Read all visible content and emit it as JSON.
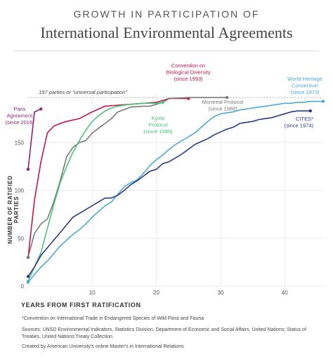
{
  "header": {
    "title_top": "GROWTH IN PARTICIPATION OF",
    "title_main": "International Environmental Agreements"
  },
  "chart_data": {
    "type": "line",
    "xlabel": "YEARS FROM FIRST RATIFICATION",
    "ylabel": "NUMBER OF RATIFIED PARTIES",
    "xlim": [
      0,
      46
    ],
    "ylim": [
      0,
      200
    ],
    "x_ticks": [
      "10",
      "20",
      "30",
      "40"
    ],
    "y_ticks": [
      "0",
      "50",
      "100",
      "150"
    ],
    "reference_line": {
      "value": 197,
      "label": "197 parties or \"universal participation\""
    },
    "series": [
      {
        "name": "Paris Agreement (since 2016)",
        "label_lines": [
          "Paris",
          "Agreement",
          "(since 2016)"
        ],
        "color": "#8a2480",
        "x": [
          0,
          1,
          2
        ],
        "y": [
          122,
          182,
          185
        ]
      },
      {
        "name": "Convention on Biological Diversity (since 1993)",
        "label_lines": [
          "Convention on",
          "Biological Diversity",
          "(since 1993)"
        ],
        "color": "#c4184a",
        "x": [
          0,
          1,
          2,
          3,
          4,
          5,
          6,
          8,
          10,
          12,
          14,
          16,
          18,
          20,
          22,
          25
        ],
        "y": [
          30,
          90,
          130,
          160,
          167,
          170,
          172,
          175,
          182,
          188,
          189,
          190,
          191,
          192,
          196,
          196
        ]
      },
      {
        "name": "Montreal Protocol (since 1988)",
        "label_lines": [
          "Montreal Protocol",
          "(since 1988)"
        ],
        "color": "#7a7a7a",
        "x": [
          0,
          1,
          2,
          3,
          4,
          5,
          6,
          7,
          8,
          9,
          10,
          11,
          12,
          13,
          14,
          16,
          18,
          19,
          20,
          21,
          22,
          25,
          31
        ],
        "y": [
          30,
          55,
          65,
          70,
          88,
          110,
          135,
          145,
          150,
          152,
          160,
          165,
          170,
          175,
          182,
          187,
          188,
          188,
          190,
          192,
          196,
          197,
          197
        ]
      },
      {
        "name": "Kyoto Protocol (since 1998)",
        "label_lines": [
          "Kyoto",
          "Protocol",
          "(since 1998)"
        ],
        "color": "#4fc17c",
        "x": [
          0,
          1,
          2,
          3,
          4,
          5,
          6,
          7,
          8,
          9,
          10,
          11,
          12,
          13,
          14,
          15,
          16,
          18,
          20,
          21
        ],
        "y": [
          5,
          20,
          35,
          60,
          85,
          108,
          125,
          140,
          152,
          163,
          172,
          178,
          183,
          186,
          188,
          189,
          190,
          191,
          191,
          192
        ]
      },
      {
        "name": "World Heritage Convention (since 1973)",
        "label_lines": [
          "World Heritage",
          "Convention",
          "(since 1973)"
        ],
        "color": "#4ea9d6",
        "x": [
          0,
          1,
          2,
          3,
          4,
          5,
          6,
          7,
          8,
          9,
          10,
          11,
          12,
          13,
          14,
          15,
          16,
          17,
          18,
          19,
          20,
          21,
          22,
          23,
          24,
          25,
          26,
          27,
          28,
          29,
          30,
          31,
          32,
          33,
          34,
          35,
          36,
          37,
          38,
          39,
          40,
          41,
          42,
          43,
          44,
          45,
          46
        ],
        "y": [
          4,
          12,
          20,
          26,
          34,
          42,
          48,
          54,
          59,
          65,
          72,
          78,
          84,
          88,
          96,
          104,
          108,
          111,
          118,
          126,
          132,
          137,
          143,
          148,
          152,
          156,
          160,
          166,
          172,
          177,
          180,
          181,
          182,
          184,
          185,
          186,
          187,
          188,
          189,
          190,
          191,
          191,
          192,
          192,
          193,
          193,
          193
        ]
      },
      {
        "name": "CITES* (since 1974)",
        "label_lines": [
          "CITES*",
          "(since 1974)"
        ],
        "color": "#2b3a87",
        "x": [
          0,
          1,
          2,
          3,
          4,
          5,
          6,
          7,
          8,
          9,
          10,
          11,
          12,
          13,
          14,
          15,
          16,
          17,
          18,
          19,
          20,
          21,
          22,
          23,
          24,
          25,
          26,
          27,
          28,
          29,
          30,
          31,
          32,
          33,
          34,
          35,
          36,
          37,
          38,
          39,
          40,
          41,
          42,
          43,
          44
        ],
        "y": [
          10,
          20,
          32,
          40,
          48,
          56,
          64,
          72,
          76,
          80,
          84,
          88,
          92,
          92,
          95,
          100,
          106,
          110,
          115,
          120,
          122,
          128,
          130,
          134,
          138,
          143,
          148,
          151,
          154,
          158,
          161,
          164,
          166,
          170,
          171,
          172,
          174,
          175,
          176,
          178,
          180,
          182,
          183,
          183,
          183
        ]
      }
    ]
  },
  "footnotes": {
    "note1": "*Convention on International Trade in Endangered Species of Wild Flora and Fauna",
    "note2": "Sources: UNSD Environmental Indicators, Statistics Division, Department of Economic and Social Affairs, United Nations; Status of Treaties, United Nations Treaty Collection.",
    "note3": "Created by American University's online Master's in International Relations"
  }
}
